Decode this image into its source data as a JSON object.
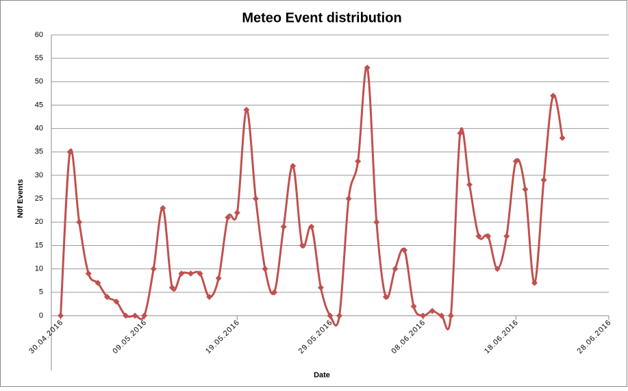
{
  "chart_data": {
    "type": "line",
    "title": "Meteo Event distribution",
    "x_label": "Date",
    "y_label": "N0f Events",
    "x": [
      "2016-04-30",
      "2016-05-01",
      "2016-05-02",
      "2016-05-03",
      "2016-05-04",
      "2016-05-05",
      "2016-05-06",
      "2016-05-07",
      "2016-05-08",
      "2016-05-09",
      "2016-05-10",
      "2016-05-11",
      "2016-05-12",
      "2016-05-13",
      "2016-05-14",
      "2016-05-15",
      "2016-05-16",
      "2016-05-17",
      "2016-05-18",
      "2016-05-19",
      "2016-05-20",
      "2016-05-21",
      "2016-05-22",
      "2016-05-23",
      "2016-05-24",
      "2016-05-25",
      "2016-05-26",
      "2016-05-27",
      "2016-05-28",
      "2016-05-29",
      "2016-05-30",
      "2016-05-31",
      "2016-06-01",
      "2016-06-02",
      "2016-06-03",
      "2016-06-04",
      "2016-06-05",
      "2016-06-06",
      "2016-06-07",
      "2016-06-08",
      "2016-06-09",
      "2016-06-10",
      "2016-06-11",
      "2016-06-12",
      "2016-06-13",
      "2016-06-14",
      "2016-06-15",
      "2016-06-16",
      "2016-06-17",
      "2016-06-18",
      "2016-06-19",
      "2016-06-20",
      "2016-06-21",
      "2016-06-22",
      "2016-06-23"
    ],
    "series": [
      {
        "color": "#c0504d",
        "values": [
          0,
          35,
          20,
          9,
          7,
          4,
          3,
          0,
          0,
          0,
          10,
          23,
          6,
          9,
          9,
          9,
          4,
          8,
          21,
          22,
          44,
          25,
          10,
          5,
          19,
          32,
          15,
          19,
          6,
          0,
          0,
          25,
          33,
          53,
          20,
          4,
          10,
          14,
          2,
          0,
          1,
          0,
          0,
          39,
          28,
          17,
          17,
          10,
          17,
          33,
          27,
          7,
          29,
          47,
          38
        ]
      }
    ],
    "xlim": [
      "2016-04-29",
      "2016-06-28"
    ],
    "xticks": [
      {
        "value": "2016-04-30",
        "label": "30.04.2016"
      },
      {
        "value": "2016-05-09",
        "label": "09.05.2016"
      },
      {
        "value": "2016-05-19",
        "label": "19.05.2016"
      },
      {
        "value": "2016-05-29",
        "label": "29.05.2016"
      },
      {
        "value": "2016-06-08",
        "label": "08.06.2016"
      },
      {
        "value": "2016-06-18",
        "label": "18.06.2016"
      },
      {
        "value": "2016-06-28",
        "label": "28.06.2016"
      }
    ],
    "ylim": [
      0,
      60
    ],
    "yticks": [
      0,
      5,
      10,
      15,
      20,
      25,
      30,
      35,
      40,
      45,
      50,
      55,
      60
    ],
    "grid": true,
    "smooth": true
  }
}
